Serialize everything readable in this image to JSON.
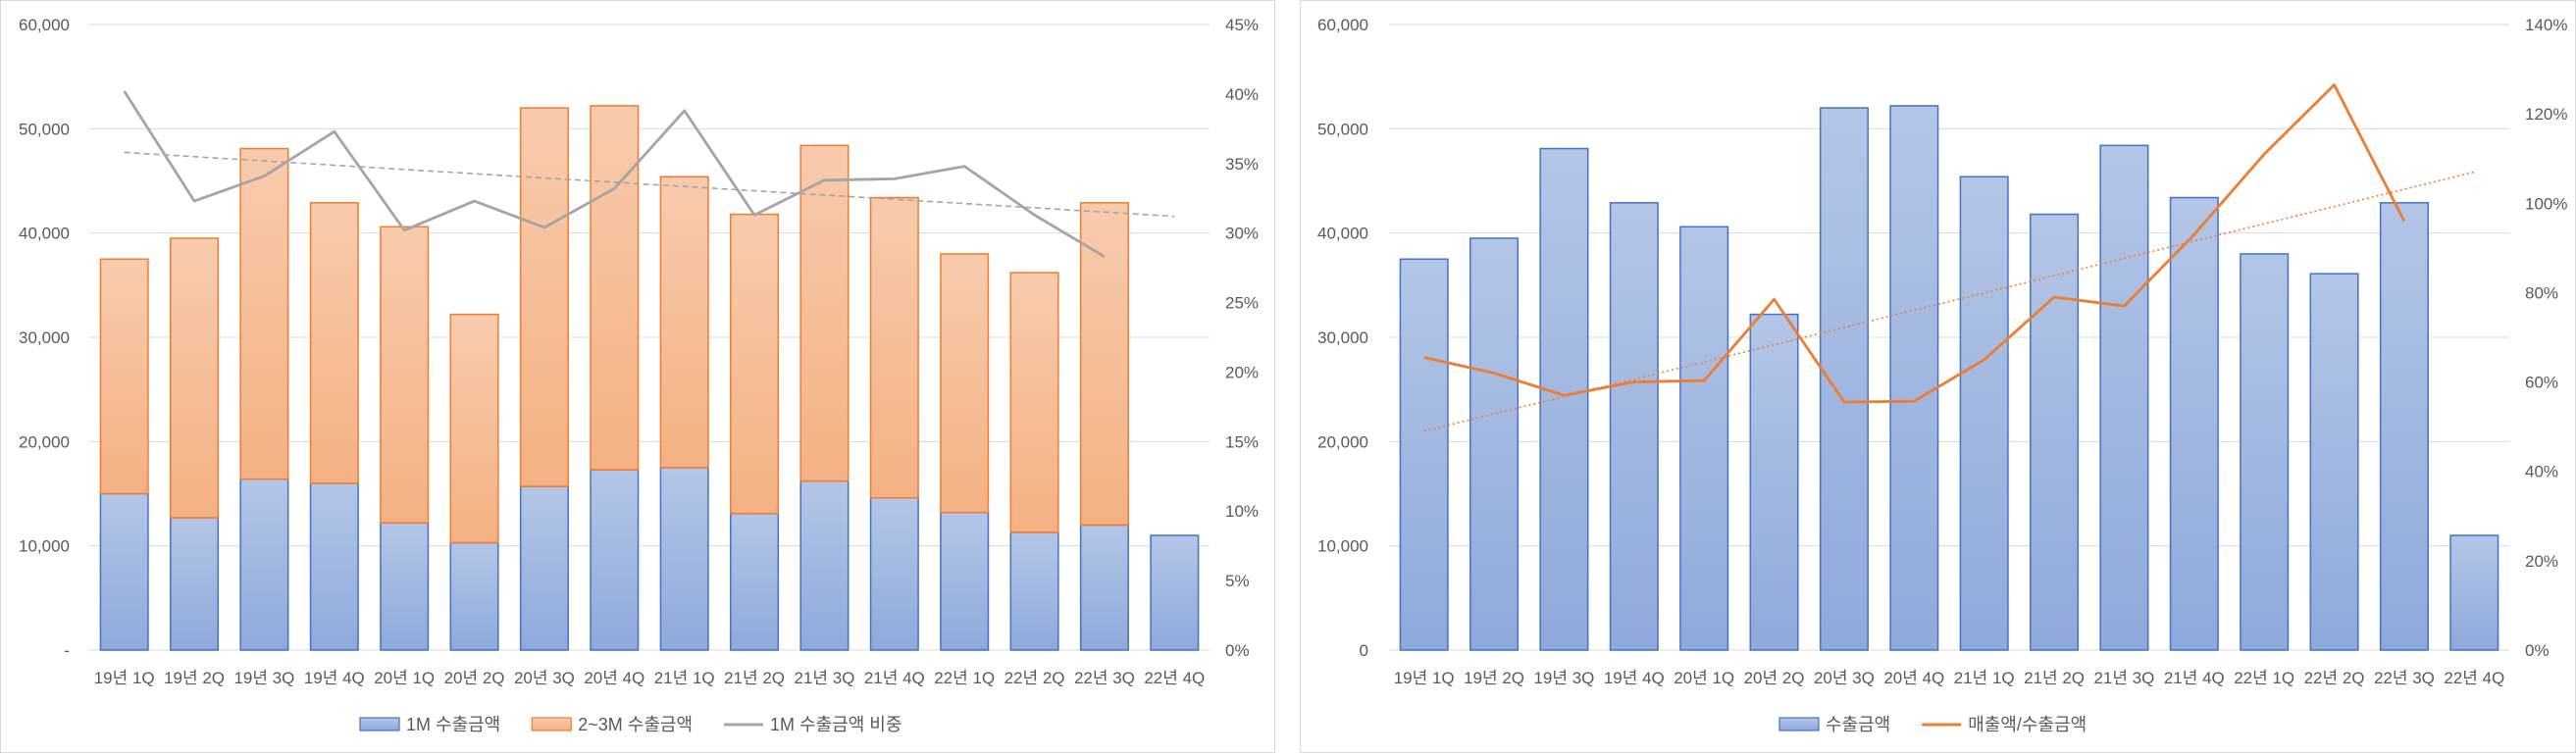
{
  "chart_data": [
    {
      "type": "bar",
      "stacked": true,
      "categories": [
        "19년 1Q",
        "19년 2Q",
        "19년 3Q",
        "19년 4Q",
        "20년 1Q",
        "20년 2Q",
        "20년 3Q",
        "20년 4Q",
        "21년 1Q",
        "21년 2Q",
        "21년 3Q",
        "21년 4Q",
        "22년 1Q",
        "22년 2Q",
        "22년 3Q",
        "22년 4Q"
      ],
      "series": [
        {
          "name": "1M 수출금액",
          "kind": "bar",
          "axis": "left",
          "color": "#8EA9DB",
          "values": [
            15000,
            12700,
            16400,
            16000,
            12200,
            10300,
            15700,
            17300,
            17500,
            13100,
            16200,
            14600,
            13200,
            11300,
            12000,
            11000
          ]
        },
        {
          "name": "2~3M 수출금액",
          "kind": "bar",
          "axis": "left",
          "color": "#F4B183",
          "values": [
            22500,
            26800,
            31700,
            26900,
            28400,
            21900,
            36300,
            34900,
            27900,
            28700,
            32200,
            28800,
            24800,
            24900,
            30900,
            null
          ]
        },
        {
          "name": "1M 수출금액 비중",
          "kind": "line",
          "axis": "right",
          "color": "#A5A5A5",
          "values": [
            40.2,
            32.3,
            34.1,
            37.3,
            30.2,
            32.3,
            30.4,
            33.2,
            38.8,
            31.3,
            33.8,
            33.9,
            34.8,
            31.3,
            28.3,
            null
          ]
        }
      ],
      "trendline": {
        "of": "1M 수출금액 비중",
        "start": 35.8,
        "end": 31.2
      },
      "yticks": [
        "-",
        "10,000",
        "20,000",
        "30,000",
        "40,000",
        "50,000",
        "60,000"
      ],
      "y2ticks": [
        "0%",
        "5%",
        "10%",
        "15%",
        "20%",
        "25%",
        "30%",
        "35%",
        "40%",
        "45%"
      ],
      "ylim": [
        0,
        60000
      ],
      "y2lim": [
        0,
        45
      ],
      "grid": true,
      "legend": "bottom"
    },
    {
      "type": "bar",
      "categories": [
        "19년 1Q",
        "19년 2Q",
        "19년 3Q",
        "19년 4Q",
        "20년 1Q",
        "20년 2Q",
        "20년 3Q",
        "20년 4Q",
        "21년 1Q",
        "21년 2Q",
        "21년 3Q",
        "21년 4Q",
        "22년 1Q",
        "22년 2Q",
        "22년 3Q",
        "22년 4Q"
      ],
      "series": [
        {
          "name": "수출금액",
          "kind": "bar",
          "axis": "left",
          "color": "#8EA9DB",
          "values": [
            37500,
            39500,
            48100,
            42900,
            40600,
            32200,
            52000,
            52200,
            45400,
            41800,
            48400,
            43400,
            38000,
            36100,
            42900,
            11000
          ]
        },
        {
          "name": "매출액/수출금액",
          "kind": "line",
          "axis": "right",
          "color": "#ED7D31",
          "values": [
            65.5,
            62,
            57,
            60,
            60.3,
            78.5,
            55.5,
            55.7,
            65,
            79,
            77,
            93,
            111,
            126.5,
            96,
            null
          ]
        }
      ],
      "trendline": {
        "of": "매출액/수출금액",
        "start": 49,
        "end": 107
      },
      "yticks": [
        "0",
        "10,000",
        "20,000",
        "30,000",
        "40,000",
        "50,000",
        "60,000"
      ],
      "y2ticks": [
        "0%",
        "20%",
        "40%",
        "60%",
        "80%",
        "100%",
        "120%",
        "140%"
      ],
      "ylim": [
        0,
        60000
      ],
      "y2lim": [
        0,
        140
      ],
      "grid": true,
      "legend": "bottom"
    }
  ]
}
